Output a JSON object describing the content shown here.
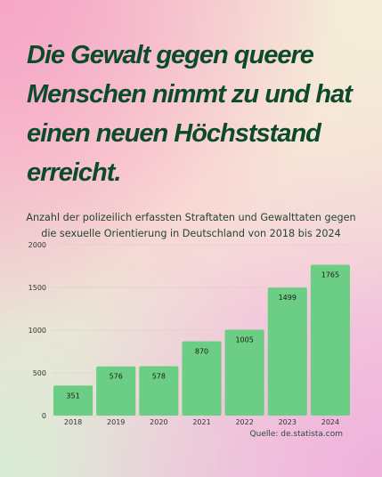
{
  "headline": "Die Gewalt gegen queere Menschen nimmt zu und hat einen neuen Höchststand erreicht.",
  "chart_data": {
    "type": "bar",
    "title": "Anzahl der polizeilich erfassten Straftaten und Gewalttaten gegen die sexuelle Orientierung in Deutschland von 2018 bis 2024",
    "categories": [
      "2018",
      "2019",
      "2020",
      "2021",
      "2022",
      "2023",
      "2024"
    ],
    "values": [
      351,
      576,
      578,
      870,
      1005,
      1499,
      1765
    ],
    "ylim": [
      0,
      2000
    ],
    "yticks": [
      0,
      500,
      1000,
      1500,
      2000
    ],
    "grid": true,
    "data_labels": true,
    "bar_color": "#6cce84"
  },
  "source": "Quelle: de.statista.com"
}
